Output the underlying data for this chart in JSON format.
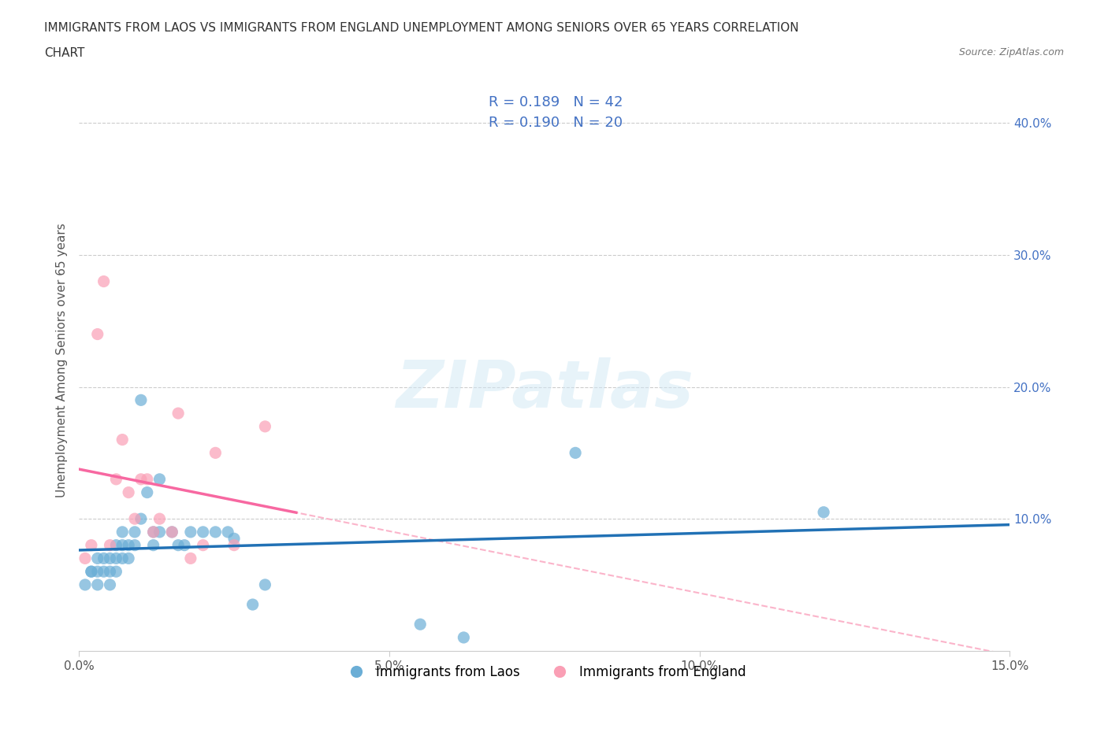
{
  "title_line1": "IMMIGRANTS FROM LAOS VS IMMIGRANTS FROM ENGLAND UNEMPLOYMENT AMONG SENIORS OVER 65 YEARS CORRELATION",
  "title_line2": "CHART",
  "source_text": "Source: ZipAtlas.com",
  "ylabel": "Unemployment Among Seniors over 65 years",
  "xlabel_bottom": "",
  "legend_label1": "Immigrants from Laos",
  "legend_label2": "Immigrants from England",
  "R1": 0.189,
  "N1": 42,
  "R2": 0.19,
  "N2": 20,
  "color_blue": "#6baed6",
  "color_pink": "#fa9fb5",
  "color_blue_line": "#2171b5",
  "color_pink_line": "#f768a1",
  "color_pink_dashed": "#fbb4ca",
  "xlim": [
    0.0,
    0.15
  ],
  "ylim": [
    0.0,
    0.44
  ],
  "xtick_labels": [
    "0.0%",
    "5.0%",
    "10.0%",
    "15.0%"
  ],
  "xtick_vals": [
    0.0,
    0.05,
    0.1,
    0.15
  ],
  "ytick_labels": [
    "10.0%",
    "20.0%",
    "30.0%",
    "40.0%"
  ],
  "ytick_vals": [
    0.1,
    0.2,
    0.3,
    0.4
  ],
  "watermark": "ZIPatlas",
  "laos_x": [
    0.001,
    0.002,
    0.002,
    0.003,
    0.003,
    0.003,
    0.004,
    0.004,
    0.005,
    0.005,
    0.005,
    0.006,
    0.006,
    0.006,
    0.007,
    0.007,
    0.007,
    0.008,
    0.008,
    0.009,
    0.009,
    0.01,
    0.01,
    0.011,
    0.012,
    0.012,
    0.013,
    0.013,
    0.015,
    0.016,
    0.017,
    0.018,
    0.02,
    0.022,
    0.024,
    0.025,
    0.028,
    0.03,
    0.055,
    0.062,
    0.08,
    0.12
  ],
  "laos_y": [
    0.05,
    0.06,
    0.06,
    0.06,
    0.05,
    0.07,
    0.06,
    0.07,
    0.05,
    0.06,
    0.07,
    0.06,
    0.07,
    0.08,
    0.07,
    0.08,
    0.09,
    0.07,
    0.08,
    0.08,
    0.09,
    0.1,
    0.19,
    0.12,
    0.08,
    0.09,
    0.09,
    0.13,
    0.09,
    0.08,
    0.08,
    0.09,
    0.09,
    0.09,
    0.09,
    0.085,
    0.035,
    0.05,
    0.02,
    0.01,
    0.15,
    0.105
  ],
  "england_x": [
    0.001,
    0.002,
    0.003,
    0.004,
    0.005,
    0.006,
    0.007,
    0.008,
    0.009,
    0.01,
    0.011,
    0.012,
    0.013,
    0.015,
    0.016,
    0.018,
    0.02,
    0.022,
    0.025,
    0.03
  ],
  "england_y": [
    0.07,
    0.08,
    0.24,
    0.28,
    0.08,
    0.13,
    0.16,
    0.12,
    0.1,
    0.13,
    0.13,
    0.09,
    0.1,
    0.09,
    0.18,
    0.07,
    0.08,
    0.15,
    0.08,
    0.17
  ]
}
